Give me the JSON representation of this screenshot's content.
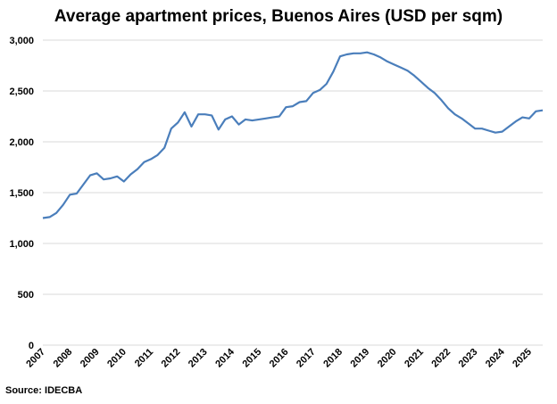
{
  "chart_data": {
    "type": "line",
    "title": "Average apartment prices, Buenos Aires (USD per sqm)",
    "source": "Source: IDECBA",
    "xlabel": "",
    "ylabel": "",
    "ylim": [
      0,
      3000
    ],
    "yticks": [
      "0",
      "500",
      "1,000",
      "1,500",
      "2,000",
      "2,500",
      "3,000"
    ],
    "xticks": [
      "2007",
      "2008",
      "2009",
      "2010",
      "2011",
      "2012",
      "2013",
      "2014",
      "2015",
      "2016",
      "2017",
      "2018",
      "2019",
      "2020",
      "2021",
      "2022",
      "2023",
      "2024",
      "2025"
    ],
    "grid": true,
    "color": "#4a7ebb",
    "x_start": 2007,
    "x_step": 0.25,
    "values": [
      1250,
      1260,
      1300,
      1380,
      1480,
      1490,
      1580,
      1670,
      1690,
      1630,
      1640,
      1660,
      1610,
      1680,
      1730,
      1800,
      1830,
      1870,
      1940,
      2130,
      2190,
      2290,
      2150,
      2270,
      2270,
      2260,
      2120,
      2220,
      2250,
      2170,
      2220,
      2210,
      2220,
      2230,
      2240,
      2250,
      2340,
      2350,
      2390,
      2400,
      2480,
      2510,
      2570,
      2690,
      2840,
      2860,
      2870,
      2870,
      2880,
      2860,
      2830,
      2790,
      2760,
      2730,
      2700,
      2650,
      2590,
      2530,
      2480,
      2410,
      2330,
      2270,
      2230,
      2180,
      2130,
      2130,
      2110,
      2090,
      2100,
      2150,
      2200,
      2240,
      2230,
      2300,
      2310
    ]
  }
}
